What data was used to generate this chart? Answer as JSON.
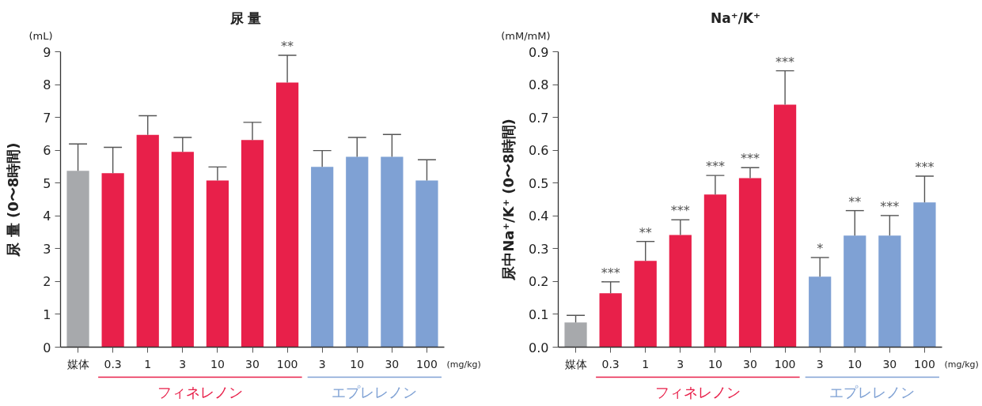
{
  "chart_data": [
    {
      "type": "bar",
      "title": "尿 量",
      "ylabel": "尿 量 (0〜8時間)",
      "categories": [
        "媒体",
        "0.3",
        "1",
        "3",
        "10",
        "30",
        "100",
        "3",
        "10",
        "30",
        "100"
      ],
      "values": [
        5.37,
        5.3,
        6.47,
        5.95,
        5.08,
        6.31,
        8.06,
        5.49,
        5.8,
        5.8,
        5.08
      ],
      "errors": [
        [
          5.37,
          6.19
        ],
        [
          5.3,
          6.09
        ],
        [
          6.47,
          7.05
        ],
        [
          5.95,
          6.39
        ],
        [
          5.08,
          5.49
        ],
        [
          6.31,
          6.85
        ],
        [
          8.06,
          8.89
        ],
        [
          5.49,
          5.99
        ],
        [
          5.8,
          6.39
        ],
        [
          5.8,
          6.48
        ],
        [
          5.08,
          5.71
        ]
      ],
      "colors": [
        "#a7a9ac",
        "#e8204a",
        "#e8204a",
        "#e8204a",
        "#e8204a",
        "#e8204a",
        "#e8204a",
        "#7fa1d4",
        "#7fa1d4",
        "#7fa1d4",
        "#7fa1d4"
      ],
      "value_labels": [
        null,
        null,
        null,
        null,
        null,
        null,
        "**",
        null,
        null,
        null,
        null
      ],
      "ylim": [
        0,
        9
      ],
      "yticks": [
        0,
        1,
        2,
        3,
        4,
        5,
        6,
        7,
        8,
        9
      ],
      "annotations": [
        "(mL)",
        "(mg/kg)",
        "フィネレノン",
        "エプレレノン"
      ]
    },
    {
      "type": "bar",
      "title": "Na⁺/K⁺",
      "ylabel": "尿中Na⁺/K⁺ (0〜8時間)",
      "categories": [
        "媒体",
        "0.3",
        "1",
        "3",
        "10",
        "30",
        "100",
        "3",
        "10",
        "30",
        "100"
      ],
      "values": [
        0.075,
        0.164,
        0.263,
        0.342,
        0.465,
        0.515,
        0.739,
        0.215,
        0.34,
        0.34,
        0.441
      ],
      "errors": [
        [
          0.075,
          0.097
        ],
        [
          0.164,
          0.199
        ],
        [
          0.263,
          0.322
        ],
        [
          0.342,
          0.388
        ],
        [
          0.465,
          0.523
        ],
        [
          0.515,
          0.547
        ],
        [
          0.739,
          0.842
        ],
        [
          0.215,
          0.273
        ],
        [
          0.34,
          0.416
        ],
        [
          0.34,
          0.401
        ],
        [
          0.441,
          0.521
        ]
      ],
      "colors": [
        "#a7a9ac",
        "#e8204a",
        "#e8204a",
        "#e8204a",
        "#e8204a",
        "#e8204a",
        "#e8204a",
        "#7fa1d4",
        "#7fa1d4",
        "#7fa1d4",
        "#7fa1d4"
      ],
      "value_labels": [
        null,
        "***",
        "**",
        "***",
        "***",
        "***",
        "***",
        "*",
        "**",
        "***",
        "***"
      ],
      "ylim": [
        0,
        0.9
      ],
      "yticks": [
        {
          "value": 0,
          "label": "0.0"
        },
        0.1,
        0.2,
        0.3,
        0.4,
        0.5,
        0.6,
        0.7,
        0.8,
        0.9
      ],
      "annotations": [
        "(mM/mM)",
        "(mg/kg)",
        "フィネレノン",
        "エプレレノン"
      ]
    }
  ]
}
